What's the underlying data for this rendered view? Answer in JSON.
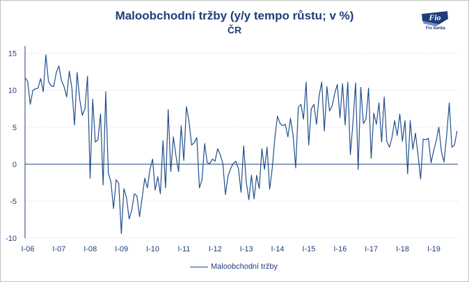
{
  "chart_data": {
    "type": "line",
    "title": "Maloobchodní tržby (y/y tempo růstu; v %)",
    "subtitle": "ČR",
    "xlabel": "",
    "ylabel": "",
    "ylim": [
      -10,
      16
    ],
    "yticks": [
      15,
      10,
      5,
      0,
      -5,
      -10
    ],
    "x_tick_labels": [
      "I-06",
      "I-07",
      "I-08",
      "I-09",
      "I-10",
      "I-11",
      "I-12",
      "I-13",
      "I-14",
      "I-15",
      "I-16",
      "I-17",
      "I-18",
      "I-19"
    ],
    "x_start": "2006-01",
    "frequency": "monthly",
    "legend_position": "bottom",
    "grid": "horizontal dashed",
    "series": [
      {
        "name": "Maloobchodní tržby",
        "color": "#1f4e8c",
        "values": [
          11.7,
          11.2,
          8.1,
          10.0,
          10.2,
          10.3,
          11.6,
          9.8,
          14.8,
          11.2,
          10.6,
          10.5,
          12.4,
          13.3,
          11.3,
          10.5,
          9.1,
          12.6,
          10.3,
          5.3,
          12.4,
          8.8,
          6.6,
          7.5,
          11.9,
          -1.9,
          8.8,
          3.0,
          3.3,
          6.8,
          -2.8,
          9.8,
          -1.2,
          -2.4,
          -6.0,
          -2.1,
          -2.6,
          -9.4,
          -3.3,
          -4.6,
          -7.4,
          -6.2,
          -4.0,
          -4.3,
          -7.1,
          -4.5,
          -1.9,
          -3.2,
          -0.7,
          0.7,
          -3.5,
          -1.7,
          -4.0,
          3.2,
          -3.2,
          7.4,
          -1.0,
          3.7,
          1.1,
          -1.0,
          5.2,
          0.5,
          7.8,
          5.8,
          2.6,
          2.9,
          3.6,
          -3.2,
          -2.1,
          2.8,
          0.2,
          0.1,
          0.7,
          0.4,
          2.1,
          1.3,
          0.1,
          -4.1,
          -1.6,
          -0.6,
          0.1,
          0.4,
          -0.6,
          -3.8,
          2.5,
          -2.4,
          -4.8,
          -1.5,
          -4.7,
          -1.5,
          -3.3,
          2.1,
          -0.7,
          2.3,
          -3.4,
          -0.5,
          3.6,
          6.5,
          5.5,
          5.2,
          5.4,
          3.7,
          6.2,
          3.9,
          -0.5,
          7.7,
          8.1,
          6.1,
          11.1,
          2.6,
          7.5,
          8.1,
          5.4,
          9.3,
          11.1,
          4.5,
          10.5,
          7.2,
          7.9,
          9.6,
          10.8,
          6.3,
          10.9,
          5.3,
          11.1,
          1.3,
          5.6,
          11.0,
          -0.7,
          10.4,
          5.5,
          6.1,
          10.3,
          0.8,
          6.9,
          5.4,
          8.3,
          3.0,
          9.1,
          3.1,
          2.3,
          3.6,
          5.9,
          3.9,
          6.8,
          3.1,
          5.9,
          -1.3,
          5.9,
          2.0,
          4.2,
          1.3,
          -2.0,
          3.4,
          3.3,
          3.5,
          0.2,
          1.8,
          3.2,
          5.0,
          1.7,
          0.3,
          3.9,
          8.3,
          2.3,
          2.6,
          4.5
        ]
      }
    ]
  },
  "logo": {
    "text": "Fio",
    "caption": "Fio banka",
    "color": "#1f3d7a"
  }
}
